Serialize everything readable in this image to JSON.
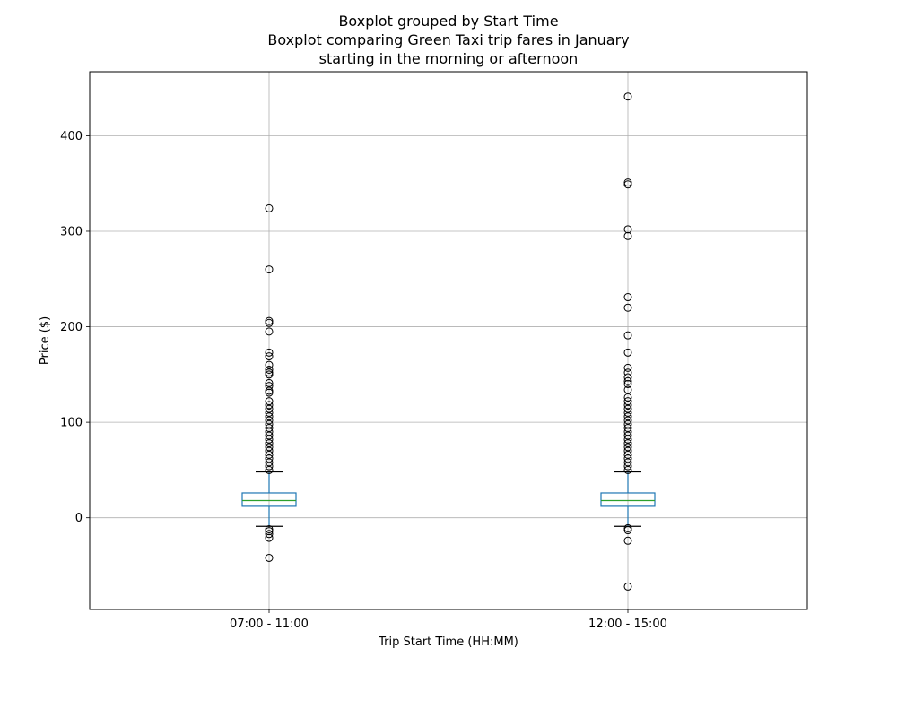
{
  "chart_data": {
    "type": "box",
    "suptitle": "Boxplot grouped by Start Time",
    "title": [
      "Boxplot comparing Green Taxi trip fares in January",
      "starting in the morning or afternoon"
    ],
    "xlabel": "Trip Start Time (HH:MM)",
    "ylabel": "Price ($)",
    "ylim": [
      -96,
      467
    ],
    "yticks": [
      0,
      100,
      200,
      300,
      400
    ],
    "grid": true,
    "colors": {
      "box": "#1f77b4",
      "median": "#2ca02c",
      "whisker": "#1f77b4",
      "cap": "#000000",
      "flier": "#000000",
      "grid": "#b0b0b0"
    },
    "categories": [
      "07:00 - 11:00",
      "12:00 - 15:00"
    ],
    "boxes": [
      {
        "category": "07:00 - 11:00",
        "whisker_low": -9,
        "q1": 12,
        "median": 18,
        "q3": 26,
        "whisker_high": 48,
        "fliers": [
          -12,
          -14,
          -17,
          -21,
          -42,
          324,
          260,
          206,
          204,
          195,
          173,
          169,
          160,
          155,
          152,
          150,
          141,
          138,
          133,
          131,
          122,
          118,
          114,
          110,
          106,
          102,
          98,
          94,
          90,
          86,
          82,
          78,
          74,
          70,
          66,
          62,
          58,
          54,
          50
        ]
      },
      {
        "category": "12:00 - 15:00",
        "whisker_low": -9,
        "q1": 12,
        "median": 18,
        "q3": 26,
        "whisker_high": 48,
        "fliers": [
          -11,
          -13,
          -24,
          -72,
          441,
          351,
          349,
          302,
          295,
          231,
          220,
          191,
          173,
          157,
          152,
          147,
          143,
          140,
          134,
          126,
          122,
          118,
          114,
          110,
          106,
          102,
          98,
          94,
          90,
          86,
          82,
          78,
          74,
          70,
          66,
          62,
          58,
          54,
          50
        ]
      }
    ]
  }
}
